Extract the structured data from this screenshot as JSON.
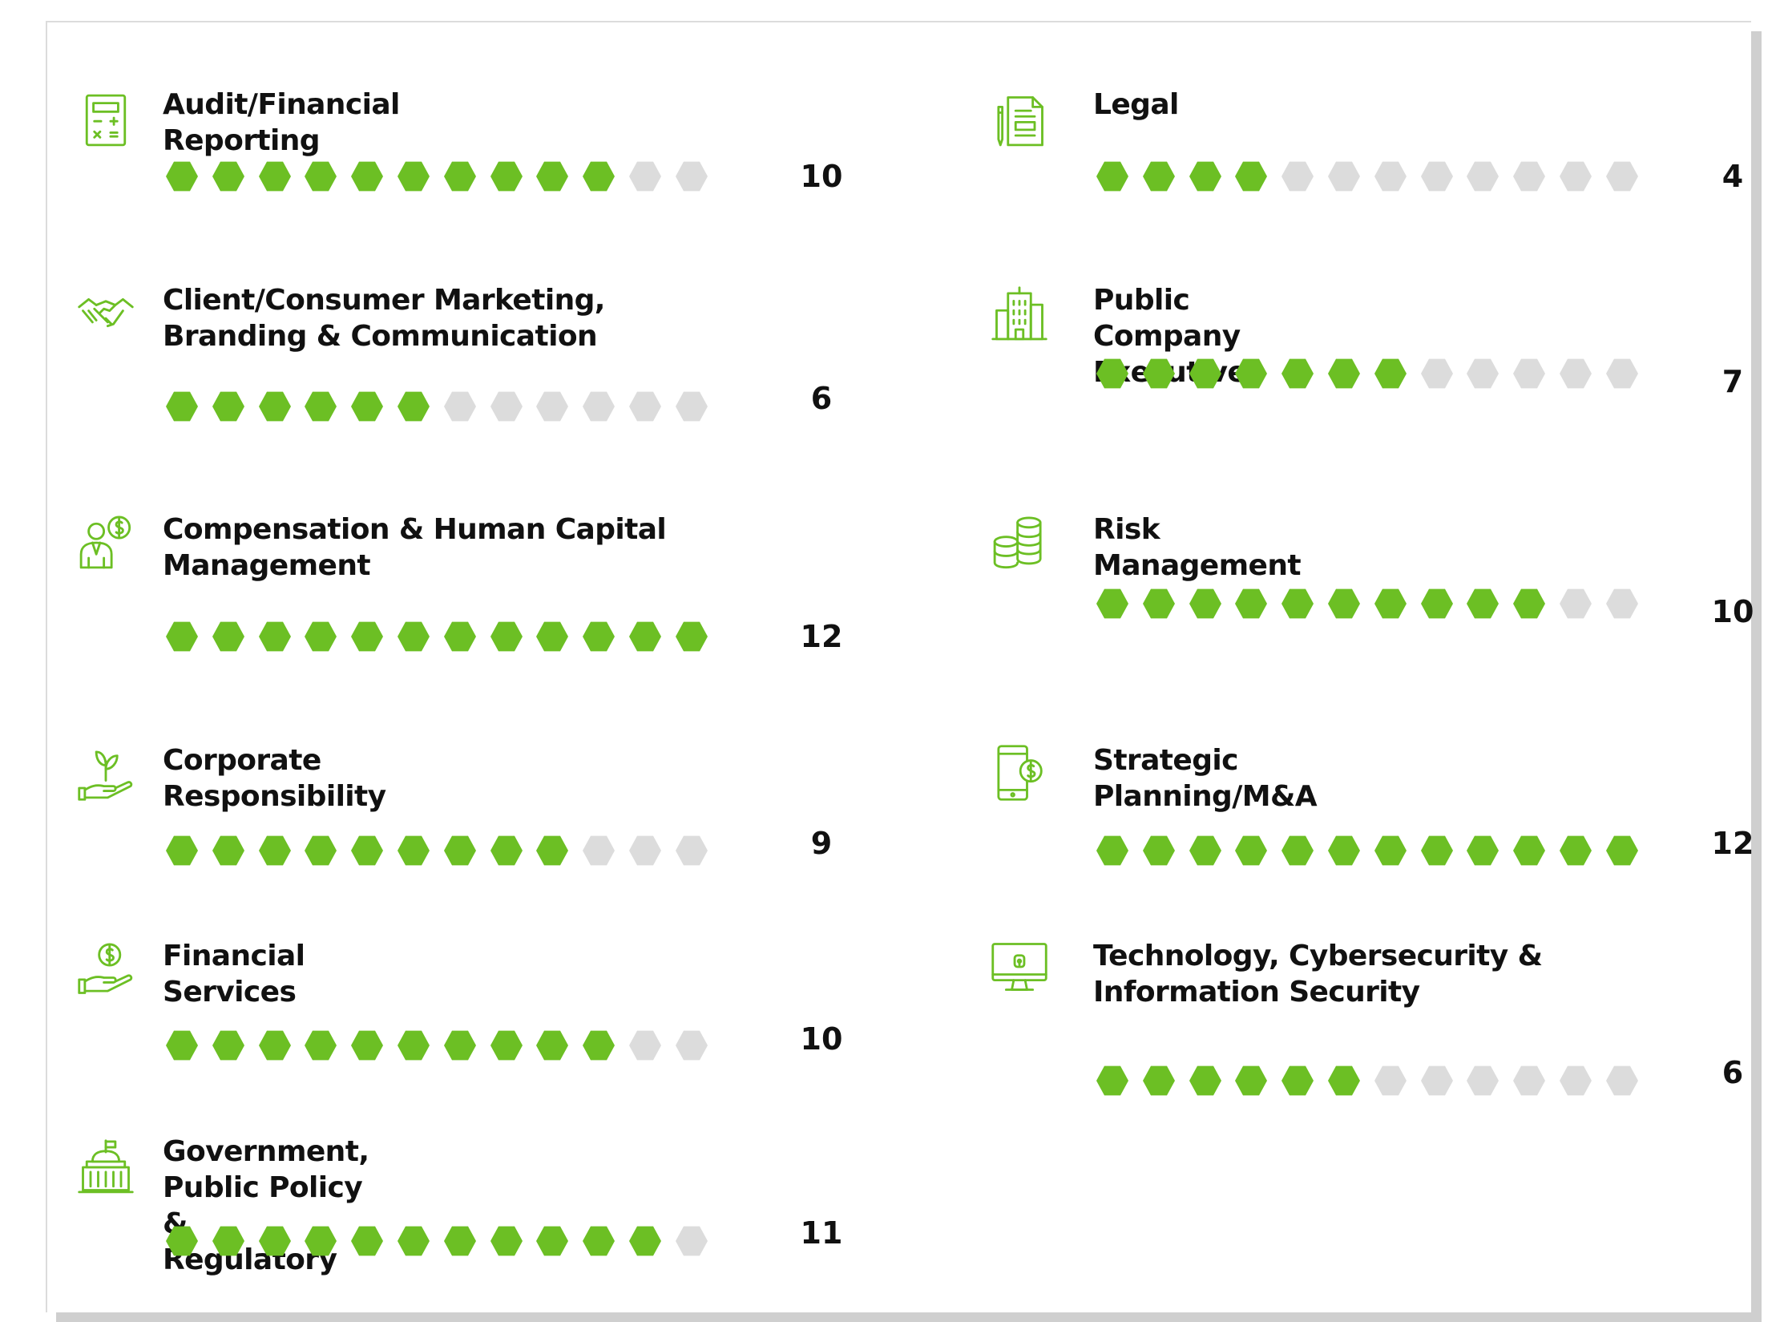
{
  "max_rating": 12,
  "colors": {
    "filled": "#6cbf24",
    "empty": "#dcdcdc",
    "icon": "#6cbf24"
  },
  "skills": [
    {
      "name": "Audit/Financial Reporting",
      "icon": "calculator-icon",
      "count": "10",
      "value": 10
    },
    {
      "name": "Client/Consumer  Marketing,  Branding  & Communication",
      "icon": "handshake-icon",
      "count": "6",
      "value": 6
    },
    {
      "name": "Compensation & Human Capital Management",
      "icon": "employee-dollar-icon",
      "count": "12",
      "value": 12
    },
    {
      "name": "Corporate Responsibility",
      "icon": "plant-in-hand-icon",
      "count": "9",
      "value": 9
    },
    {
      "name": "Financial Services",
      "icon": "coin-in-hand-icon",
      "count": "10",
      "value": 10
    },
    {
      "name": "Government, Public Policy & Regulatory",
      "icon": "capitol-building-icon",
      "count": "11",
      "value": 11
    },
    {
      "name": "Legal",
      "icon": "legal-document-icon",
      "count": "4",
      "value": 4
    },
    {
      "name": "Public Company Executive",
      "icon": "office-building-icon",
      "count": "7",
      "value": 7
    },
    {
      "name": "Risk Management",
      "icon": "coin-stacks-icon",
      "count": "10",
      "value": 10
    },
    {
      "name": "Strategic Planning/M&A",
      "icon": "phone-dollar-icon",
      "count": "12",
      "value": 12
    },
    {
      "name": "Technology, Cybersecurity & Information Security",
      "icon": "monitor-lock-icon",
      "count": "6",
      "value": 6
    }
  ]
}
